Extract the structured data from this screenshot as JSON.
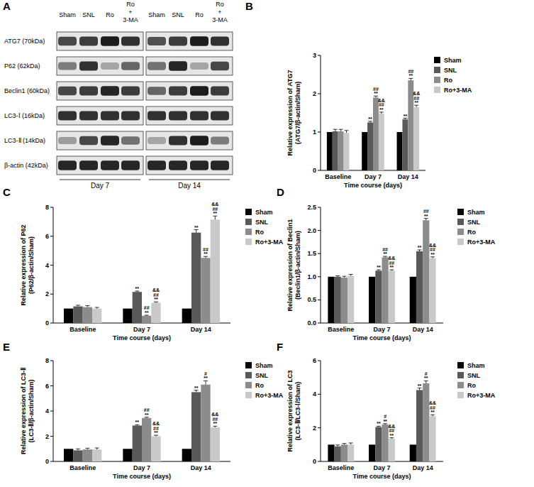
{
  "blot": {
    "panel_label": "A",
    "lanes": [
      [
        "Sham"
      ],
      [
        "SNL"
      ],
      [
        "Ro"
      ],
      [
        "Ro",
        "+",
        "3-MA"
      ]
    ],
    "proteins": [
      "ATG7 (70kDa)",
      "P62 (62kDa)",
      "Beclin1 (60kDa)",
      "LC3-Ⅰ (16kDa)",
      "LC3-Ⅱ (14kDa)",
      "β-actin (42kDa)"
    ],
    "days": [
      "Day 7",
      "Day 14"
    ]
  },
  "chart_data": [
    {
      "type": "bar",
      "panel_label": "B",
      "ylabel": [
        "Relative expression of ATG7",
        "(ATG7/β-actin/Sham)"
      ],
      "xlabel": "Time course (days)",
      "categories": [
        "Baseline",
        "Day 7",
        "Day 14"
      ],
      "ylim": [
        0,
        3
      ],
      "yticks": [
        0,
        1,
        2,
        3
      ],
      "legend": "right",
      "series": [
        {
          "name": "Sham",
          "color": "#000000",
          "values": [
            1,
            1,
            1
          ],
          "errors": [
            0,
            0,
            0
          ],
          "annotations": [
            null,
            null,
            null
          ]
        },
        {
          "name": "SNL",
          "color": "#595959",
          "values": [
            1.02,
            1.25,
            1.33
          ],
          "errors": [
            0.05,
            0.03,
            0.03
          ],
          "annotations": [
            null,
            [
              "**"
            ],
            [
              "**"
            ]
          ]
        },
        {
          "name": "Ro",
          "color": "#8c8c8c",
          "values": [
            1.02,
            1.9,
            2.35
          ],
          "errors": [
            0.05,
            0.04,
            0.05
          ],
          "annotations": [
            null,
            [
              "##",
              "**"
            ],
            [
              "##",
              "**"
            ]
          ]
        },
        {
          "name": "Ro+3-MA",
          "color": "#c9c9c9",
          "values": [
            0.98,
            1.48,
            1.65
          ],
          "errors": [
            0.06,
            0.04,
            0.05
          ],
          "annotations": [
            null,
            [
              "&&",
              "##",
              "**"
            ],
            [
              "&&",
              "##",
              "**"
            ]
          ]
        }
      ]
    },
    {
      "type": "bar",
      "panel_label": "C",
      "ylabel": [
        "Relative expression of P62",
        "(P62/β-actin/Sham)"
      ],
      "xlabel": "Time course (days)",
      "categories": [
        "Baseline",
        "Day 7",
        "Day 14"
      ],
      "ylim": [
        0,
        8
      ],
      "yticks": [
        0,
        2,
        4,
        6,
        8
      ],
      "legend": "right",
      "series": [
        {
          "name": "Sham",
          "color": "#000000",
          "values": [
            1,
            1,
            1
          ],
          "errors": [
            0,
            0,
            0
          ],
          "annotations": [
            null,
            null,
            null
          ]
        },
        {
          "name": "SNL",
          "color": "#595959",
          "values": [
            1.15,
            2.15,
            6.25
          ],
          "errors": [
            0.08,
            0.06,
            0.2
          ],
          "annotations": [
            null,
            [
              "**"
            ],
            [
              "**"
            ]
          ]
        },
        {
          "name": "Ro",
          "color": "#8c8c8c",
          "values": [
            1.1,
            0.5,
            4.5
          ],
          "errors": [
            0.1,
            0.04,
            0.1
          ],
          "annotations": [
            null,
            [
              "##",
              "**"
            ],
            [
              "##",
              "**"
            ]
          ]
        },
        {
          "name": "Ro+3-MA",
          "color": "#c9c9c9",
          "values": [
            1.0,
            1.4,
            7.15
          ],
          "errors": [
            0.08,
            0.06,
            0.25
          ],
          "annotations": [
            null,
            [
              "&&",
              "##",
              "**"
            ],
            [
              "&&",
              "##",
              "**"
            ]
          ]
        }
      ]
    },
    {
      "type": "bar",
      "panel_label": "D",
      "ylabel": [
        "Relative expression of Beclin1",
        "(Beclin1/β-actin/Sham)"
      ],
      "xlabel": "Time course (days)",
      "categories": [
        "Baseline",
        "Day 7",
        "Day 14"
      ],
      "ylim": [
        0,
        2.5
      ],
      "yticks": [
        {
          "value": 0,
          "label": "0.0"
        },
        0.5,
        {
          "value": 1,
          "label": "1.0"
        },
        1.5,
        {
          "value": 2,
          "label": "2.0"
        },
        2.5
      ],
      "legend": "right",
      "series": [
        {
          "name": "Sham",
          "color": "#000000",
          "values": [
            1,
            1,
            1
          ],
          "errors": [
            0,
            0,
            0
          ],
          "annotations": [
            null,
            null,
            null
          ]
        },
        {
          "name": "SNL",
          "color": "#595959",
          "values": [
            1.0,
            1.13,
            1.55
          ],
          "errors": [
            0.02,
            0.02,
            0.03
          ],
          "annotations": [
            null,
            [
              "**"
            ],
            [
              "**"
            ]
          ]
        },
        {
          "name": "Ro",
          "color": "#8c8c8c",
          "values": [
            0.98,
            1.42,
            2.22
          ],
          "errors": [
            0.03,
            0.02,
            0.04
          ],
          "annotations": [
            null,
            [
              "##",
              "**"
            ],
            [
              "##",
              "**"
            ]
          ]
        },
        {
          "name": "Ro+3-MA",
          "color": "#c9c9c9",
          "values": [
            1.02,
            1.13,
            1.4
          ],
          "errors": [
            0.03,
            0.02,
            0.03
          ],
          "annotations": [
            null,
            [
              "&&",
              "##",
              "**"
            ],
            [
              "&&",
              "##",
              "**"
            ]
          ]
        }
      ]
    },
    {
      "type": "bar",
      "panel_label": "E",
      "ylabel": [
        "Relative expression of LC3-Ⅱ",
        "(LC3-Ⅱ/β-actin/Sham)"
      ],
      "xlabel": "Time course (days)",
      "categories": [
        "Baseline",
        "Day 7",
        "Day 14"
      ],
      "ylim": [
        0,
        8
      ],
      "yticks": [
        0,
        2,
        4,
        6,
        8
      ],
      "legend": "right",
      "series": [
        {
          "name": "Sham",
          "color": "#000000",
          "values": [
            1,
            1,
            1
          ],
          "errors": [
            0,
            0,
            0
          ],
          "annotations": [
            null,
            null,
            null
          ]
        },
        {
          "name": "SNL",
          "color": "#595959",
          "values": [
            0.88,
            2.85,
            5.5
          ],
          "errors": [
            0.12,
            0.06,
            0.15
          ],
          "annotations": [
            null,
            [
              "**"
            ],
            [
              "**"
            ]
          ]
        },
        {
          "name": "Ro",
          "color": "#8c8c8c",
          "values": [
            0.95,
            3.45,
            6.1
          ],
          "errors": [
            0.1,
            0.06,
            0.3
          ],
          "annotations": [
            null,
            [
              "##",
              "**"
            ],
            [
              "#",
              "**"
            ]
          ]
        },
        {
          "name": "Ro+3-MA",
          "color": "#c9c9c9",
          "values": [
            0.95,
            2.0,
            2.7
          ],
          "errors": [
            0.12,
            0.08,
            0.1
          ],
          "annotations": [
            null,
            [
              "&&",
              "##",
              "**"
            ],
            [
              "&&",
              "##",
              "**"
            ]
          ]
        }
      ]
    },
    {
      "type": "bar",
      "panel_label": "F",
      "ylabel": [
        "Relative expression of LC3",
        "(LC3-Ⅱ/LC3-Ⅰ/Sham)"
      ],
      "xlabel": "Time course (days)",
      "categories": [
        "Baseline",
        "Day 7",
        "Day 14"
      ],
      "ylim": [
        0,
        6
      ],
      "yticks": [
        0,
        2,
        4,
        6
      ],
      "legend": "right",
      "series": [
        {
          "name": "Sham",
          "color": "#000000",
          "values": [
            1,
            1,
            1
          ],
          "errors": [
            0,
            0,
            0
          ],
          "annotations": [
            null,
            null,
            null
          ]
        },
        {
          "name": "SNL",
          "color": "#595959",
          "values": [
            0.9,
            2.05,
            4.25
          ],
          "errors": [
            0.08,
            0.05,
            0.12
          ],
          "annotations": [
            null,
            [
              "**"
            ],
            [
              "**"
            ]
          ]
        },
        {
          "name": "Ro",
          "color": "#8c8c8c",
          "values": [
            1.0,
            2.2,
            4.65
          ],
          "errors": [
            0.07,
            0.05,
            0.15
          ],
          "annotations": [
            null,
            [
              "#",
              "**"
            ],
            [
              "#",
              "**"
            ]
          ]
        },
        {
          "name": "Ro+3-MA",
          "color": "#c9c9c9",
          "values": [
            1.0,
            1.35,
            2.7
          ],
          "errors": [
            0.1,
            0.06,
            0.08
          ],
          "annotations": [
            null,
            [
              "&&",
              "##",
              "**"
            ],
            [
              "&&",
              "##",
              "**"
            ]
          ]
        }
      ]
    }
  ]
}
